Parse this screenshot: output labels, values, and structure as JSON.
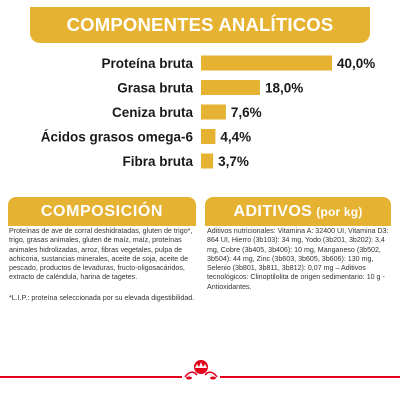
{
  "header": {
    "title": "COMPONENTES ANALÍTICOS"
  },
  "chart_data": {
    "type": "bar",
    "orientation": "horizontal",
    "categories": [
      "Proteína bruta",
      "Grasa bruta",
      "Ceniza bruta",
      "Ácidos grasos omega-6",
      "Fibra bruta"
    ],
    "values": [
      40.0,
      18.0,
      7.6,
      4.4,
      3.7
    ],
    "value_labels": [
      "40,0%",
      "18,0%",
      "7,6%",
      "4,4%",
      "3,7%"
    ],
    "unit": "%",
    "xlim": [
      0,
      40
    ],
    "grid": false,
    "bar_color": "#e6b232",
    "label_color": "#1a1a1a"
  },
  "composicion": {
    "title": "COMPOSICIÓN",
    "text": "Proteínas de ave de corral deshidratadas, gluten de trigo*, trigo, grasas animales, gluten de maíz, maíz, proteínas animales hidrolizadas, arroz, fibras vegetales, pulpa de achicoria, sustancias minerales, aceite de soja, aceite de pescado, productos de levaduras, fructo-oligosacáridos, extracto de caléndula, harina de tagetes.",
    "note": "*L.I.P.: proteína seleccionada por su elevada digestibilidad."
  },
  "aditivos": {
    "title": "ADITIVOS",
    "unit": "(por kg)",
    "text": "Aditivos nutricionales: Vitamina A: 32400 UI, Vitamina D3: 864 UI, Hierro (3b103): 34 mg, Yodo (3b201, 3b202): 3,4 mg, Cobre (3b405, 3b406): 10 mg, Manganeso (3b502, 3b504): 44 mg, Zinc (3b603, 3b605, 3b606): 130 mg, Selenio (3b801, 3b811, 3b812): 0,07 mg – Aditivos tecnológicos: Clinoptilolita de origen sedimentario: 10 g - Antioxidantes."
  },
  "colors": {
    "accent": "#e6b232",
    "footer_line": "#e3001b",
    "logo": "#e3001b"
  },
  "footer": {
    "logo_icon": "royal-canin-crown-icon"
  }
}
